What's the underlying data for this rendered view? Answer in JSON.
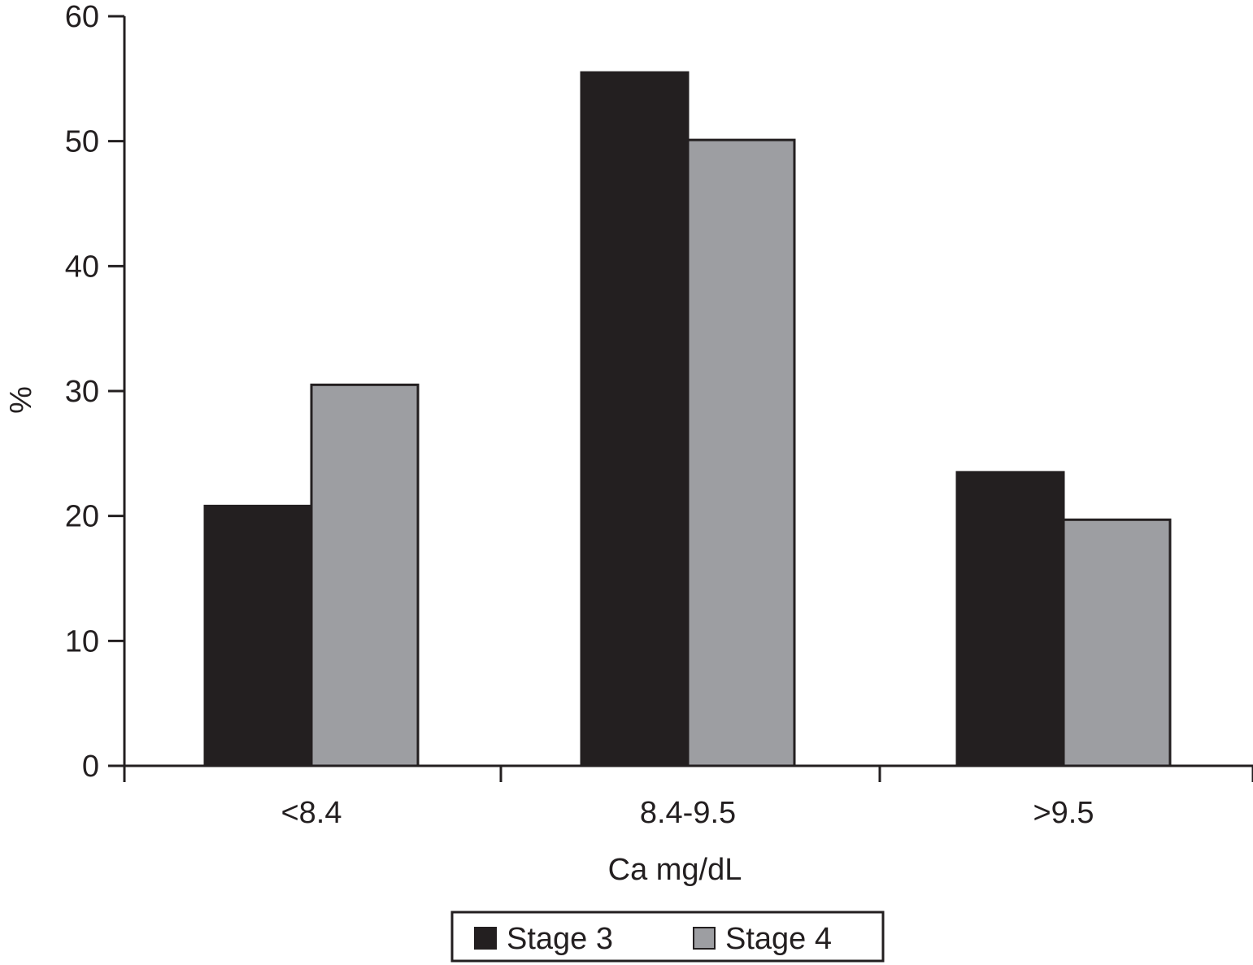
{
  "chart_data": {
    "type": "bar",
    "categories": [
      "<8.4",
      "8.4-9.5",
      ">9.5"
    ],
    "series": [
      {
        "name": "Stage 3",
        "values": [
          20.8,
          55.5,
          23.5
        ],
        "color": "#231f20"
      },
      {
        "name": "Stage 4",
        "values": [
          30.5,
          50.1,
          19.7
        ],
        "color": "#9d9ea2"
      }
    ],
    "xlabel": "Ca mg/dL",
    "ylabel": "%",
    "ylim": [
      0,
      60
    ],
    "yticks": [
      "0",
      "10",
      "20",
      "30",
      "40",
      "50",
      "60"
    ],
    "grid": false,
    "legend_position": "bottom-center"
  }
}
